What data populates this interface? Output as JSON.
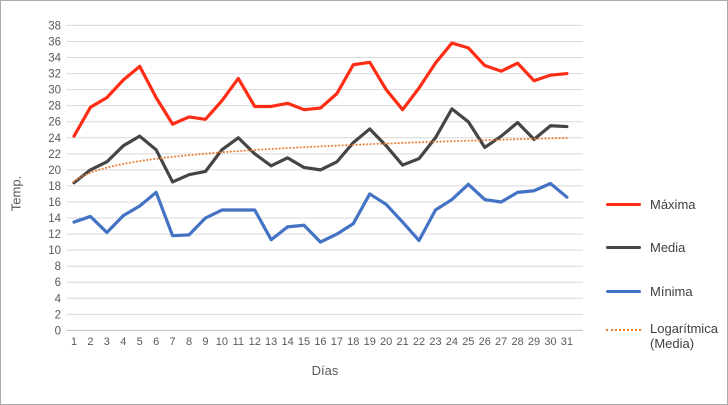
{
  "window": {
    "background": "#ffffff",
    "border_color": "#ababab"
  },
  "chart_data": {
    "type": "line",
    "title": "",
    "xlabel": "Días",
    "ylabel": "Temp.",
    "grid": true,
    "legend_position": "right",
    "ylim": [
      0,
      38
    ],
    "ytick_step": 2,
    "y_ticks": [
      0,
      2,
      4,
      6,
      8,
      10,
      12,
      14,
      16,
      18,
      20,
      22,
      24,
      26,
      28,
      30,
      32,
      34,
      36,
      38
    ],
    "x": [
      1,
      2,
      3,
      4,
      5,
      6,
      7,
      8,
      9,
      10,
      11,
      12,
      13,
      14,
      15,
      16,
      17,
      18,
      19,
      20,
      21,
      22,
      23,
      24,
      25,
      26,
      27,
      28,
      29,
      30,
      31
    ],
    "grid_color": "#d9d9d9",
    "axis_line_color": "#bfbfbf",
    "tick_label_color": "#595959",
    "series": [
      {
        "name": "Máxima",
        "color": "#ff2d16",
        "width": 3.2,
        "values": [
          24.2,
          27.8,
          29.0,
          31.2,
          32.9,
          29.0,
          25.7,
          26.6,
          26.3,
          28.6,
          31.4,
          27.9,
          27.9,
          28.3,
          27.5,
          27.7,
          29.5,
          33.1,
          33.4,
          30.0,
          27.5,
          30.2,
          33.3,
          35.8,
          35.2,
          33.0,
          32.3,
          33.3,
          31.1,
          31.8,
          32.0
        ]
      },
      {
        "name": "Media",
        "color": "#454545",
        "width": 3.2,
        "values": [
          18.4,
          20.0,
          21.0,
          23.0,
          24.2,
          22.5,
          18.5,
          19.4,
          19.8,
          22.5,
          24.0,
          22.0,
          20.5,
          21.5,
          20.3,
          20.0,
          21.0,
          23.4,
          25.1,
          23.0,
          20.6,
          21.4,
          24.0,
          27.6,
          26.0,
          22.8,
          24.2,
          25.9,
          23.8,
          25.5,
          25.4
        ]
      },
      {
        "name": "Mínima",
        "color": "#4472c4",
        "width": 3.2,
        "values": [
          13.5,
          14.2,
          12.2,
          14.3,
          15.5,
          17.2,
          11.8,
          11.9,
          14.0,
          15.0,
          15.0,
          15.0,
          11.3,
          12.9,
          13.1,
          11.0,
          12.0,
          13.3,
          17.0,
          15.7,
          13.5,
          11.2,
          15.0,
          16.3,
          18.2,
          16.3,
          16.0,
          17.2,
          17.4,
          18.3,
          16.6
        ]
      }
    ],
    "trendline": {
      "name": "Logarítmica (Media)",
      "based_on": "Media",
      "style": "dotted",
      "color": "#ed7d31",
      "log_a": 18.55,
      "log_b": 1.58
    }
  },
  "legend": {
    "items": [
      {
        "label": "Máxima",
        "color": "#ff2d16",
        "style": "solid"
      },
      {
        "label": "Media",
        "color": "#454545",
        "style": "solid"
      },
      {
        "label": "Mínima",
        "color": "#4472c4",
        "style": "solid"
      },
      {
        "label": "Logarítmica (Media)",
        "label_line1": "Logarítmica",
        "label_line2": "(Media)",
        "color": "#ed7d31",
        "style": "dotted"
      }
    ]
  }
}
